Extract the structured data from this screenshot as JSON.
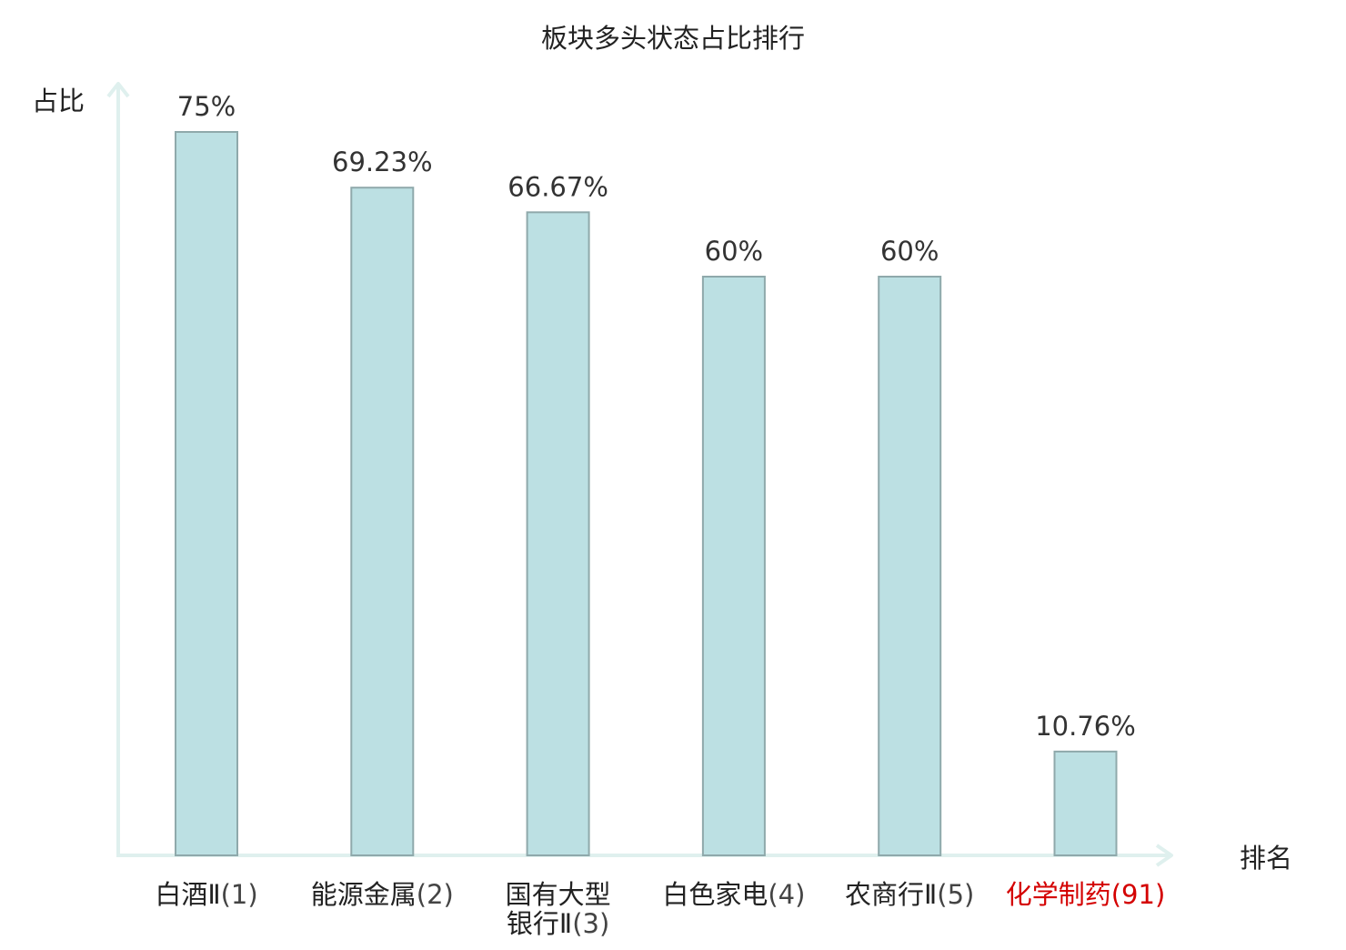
{
  "chart_data": {
    "type": "bar",
    "title": "板块多头状态占比排行",
    "ylabel": "占比",
    "xlabel": "排名",
    "ylim": [
      0,
      80
    ],
    "grid": false,
    "categories": [
      {
        "name": [
          "白酒Ⅱ"
        ],
        "rank": "(1)",
        "highlight": false
      },
      {
        "name": [
          "能源金属"
        ],
        "rank": "(2)",
        "highlight": false
      },
      {
        "name": [
          "国有大型",
          "银行Ⅱ"
        ],
        "rank": "(3)",
        "highlight": false
      },
      {
        "name": [
          "白色家电"
        ],
        "rank": "(4)",
        "highlight": false
      },
      {
        "name": [
          "农商行Ⅱ"
        ],
        "rank": "(5)",
        "highlight": false
      },
      {
        "name": [
          "化学制药"
        ],
        "rank": "(91)",
        "highlight": true
      }
    ],
    "values": [
      75,
      69.23,
      66.67,
      60,
      60,
      10.76
    ],
    "value_labels": [
      "75%",
      "69.23%",
      "66.67%",
      "60%",
      "60%",
      "10.76%"
    ]
  },
  "colors": {
    "bar_fill": "#bce0e3",
    "bar_stroke": "#8fa9ab",
    "axis": "#dff0ee",
    "text": "#222222",
    "value_label": "#333333",
    "rank_text": "#444444",
    "highlight": "#d40000"
  }
}
